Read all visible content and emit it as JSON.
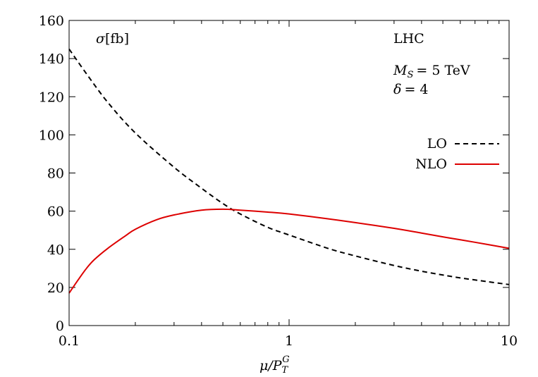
{
  "chart_data": {
    "type": "line",
    "x_scale": "log",
    "xlim": [
      0.1,
      10
    ],
    "ylim": [
      0,
      160
    ],
    "x_ticks": [
      {
        "value": 0.1,
        "label": "0.1"
      },
      {
        "value": 1,
        "label": "1"
      },
      {
        "value": 10,
        "label": "10"
      }
    ],
    "y_ticks": [
      {
        "value": 0,
        "label": "0"
      },
      {
        "value": 20,
        "label": "20"
      },
      {
        "value": 40,
        "label": "40"
      },
      {
        "value": 60,
        "label": "60"
      },
      {
        "value": 80,
        "label": "80"
      },
      {
        "value": 100,
        "label": "100"
      },
      {
        "value": 120,
        "label": "120"
      },
      {
        "value": 140,
        "label": "140"
      },
      {
        "value": 160,
        "label": "160"
      }
    ],
    "xlabel": {
      "main": "μ/P",
      "sub": "T",
      "sup": "G"
    },
    "ylabel": {
      "symbol": "σ",
      "unit": "[fb]"
    },
    "grid": false,
    "legend_position": "right",
    "annotations": {
      "collider": "LHC",
      "ms_symbol": "M",
      "ms_sub": "S",
      "ms_value": "= 5 TeV",
      "delta_symbol": "δ",
      "delta_value": "= 4"
    },
    "series": [
      {
        "name": "LO",
        "color": "#000000",
        "dash": "dashed",
        "x": [
          0.1,
          0.12,
          0.15,
          0.2,
          0.3,
          0.4,
          0.5,
          0.6,
          0.8,
          1,
          1.5,
          2,
          3,
          4,
          5,
          6,
          8,
          10
        ],
        "y": [
          145,
          132,
          117,
          101,
          83,
          72,
          64,
          58.5,
          51.5,
          47.5,
          40.5,
          36.5,
          31.5,
          28.5,
          26.5,
          25,
          23,
          21.5
        ]
      },
      {
        "name": "NLO",
        "color": "#dd0000",
        "dash": "solid",
        "x": [
          0.1,
          0.11,
          0.12,
          0.13,
          0.15,
          0.18,
          0.2,
          0.25,
          0.3,
          0.4,
          0.5,
          0.6,
          0.8,
          1,
          1.5,
          2,
          3,
          4,
          5,
          6,
          8,
          10
        ],
        "y": [
          17,
          24,
          30,
          34.5,
          40.5,
          47,
          50.5,
          55.5,
          58,
          60.5,
          61,
          60.5,
          59.5,
          58.5,
          56,
          54,
          51,
          48.5,
          46.5,
          45,
          42.5,
          40.5
        ]
      }
    ]
  }
}
